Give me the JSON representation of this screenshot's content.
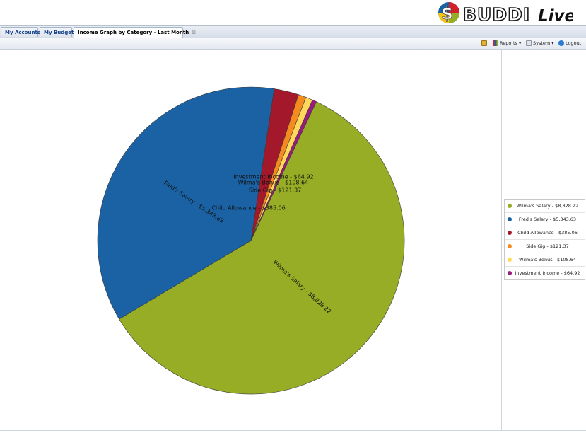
{
  "brand": {
    "logo_text": "BUDDI",
    "logo_suffix": "Live"
  },
  "tabs": [
    {
      "label": "My Accounts",
      "active": false
    },
    {
      "label": "My Budget",
      "active": false
    },
    {
      "label": "Income Graph by Category - Last Month",
      "active": true,
      "close_glyph": "⊠"
    }
  ],
  "toolbar": {
    "reports_label": "Reports ▾",
    "system_label": "System ▾",
    "logout_label": "Logout"
  },
  "chart_data": {
    "type": "pie",
    "title": "",
    "slices": [
      {
        "label": "Wilma's Salary - $8,828.22",
        "value": 8828.22,
        "color": "#96ad25"
      },
      {
        "label": "Fred's Salary - $5,343.63",
        "value": 5343.63,
        "color": "#1b62a5"
      },
      {
        "label": "Child Allowance - $385.06",
        "value": 385.06,
        "color": "#a3182b"
      },
      {
        "label": "Side Gig - $121.37",
        "value": 121.37,
        "color": "#f58a1f"
      },
      {
        "label": "Wilma's Bonus - $108.64",
        "value": 108.64,
        "color": "#ffd75a"
      },
      {
        "label": "Investment Income - $64.92",
        "value": 64.92,
        "color": "#9b1a7f"
      }
    ],
    "legend": "right"
  }
}
